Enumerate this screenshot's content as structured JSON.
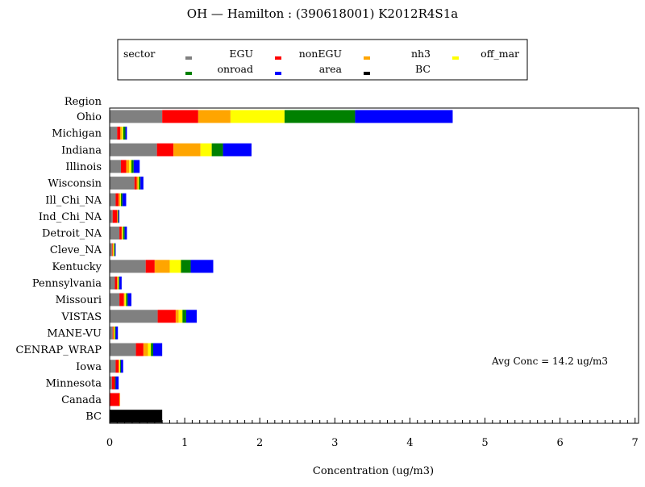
{
  "chart_data": {
    "type": "bar",
    "orientation": "horizontal",
    "stacked": true,
    "title": "OH — Hamilton : (390618001) K2012R4S1a",
    "xlabel": "Concentration (ug/m3)",
    "ylabel": "Region",
    "xlim": [
      0,
      7
    ],
    "xticks": [
      "0",
      "1",
      "2",
      "3",
      "4",
      "5",
      "6",
      "7"
    ],
    "grid": false,
    "legend_title": "sector",
    "legend_placement": "top",
    "annotation": "Avg Conc = 14.2 ug/m3",
    "categories": [
      "Ohio",
      "Michigan",
      "Indiana",
      "Illinois",
      "Wisconsin",
      "Ill_Chi_NA",
      "Ind_Chi_NA",
      "Detroit_NA",
      "Cleve_NA",
      "Kentucky",
      "Pennsylvania",
      "Missouri",
      "VISTAS",
      "MANE-VU",
      "CENRAP_WRAP",
      "Iowa",
      "Minnesota",
      "Canada",
      "BC"
    ],
    "series": [
      {
        "name": "EGU",
        "color": "#808080",
        "values": [
          0.7,
          0.1,
          0.63,
          0.15,
          0.33,
          0.08,
          0.04,
          0.13,
          0.03,
          0.48,
          0.07,
          0.13,
          0.64,
          0.04,
          0.35,
          0.08,
          0.03,
          0.0,
          0
        ]
      },
      {
        "name": "nonEGU",
        "color": "#ff0000",
        "values": [
          0.48,
          0.04,
          0.22,
          0.07,
          0.03,
          0.04,
          0.06,
          0.03,
          0.01,
          0.12,
          0.03,
          0.06,
          0.24,
          0.01,
          0.1,
          0.04,
          0.04,
          0.13,
          0
        ]
      },
      {
        "name": "nh3",
        "color": "#ffa500",
        "values": [
          0.43,
          0.02,
          0.36,
          0.04,
          0.02,
          0.02,
          0.01,
          0.01,
          0.01,
          0.2,
          0.01,
          0.01,
          0.04,
          0.01,
          0.06,
          0.01,
          0.0,
          0.01,
          0
        ]
      },
      {
        "name": "off_mar",
        "color": "#ffff00",
        "values": [
          0.72,
          0.02,
          0.15,
          0.03,
          0.01,
          0.01,
          0.0,
          0.01,
          0.01,
          0.15,
          0.01,
          0.02,
          0.05,
          0.01,
          0.04,
          0.01,
          0.0,
          0.0,
          0
        ]
      },
      {
        "name": "onroad",
        "color": "#008000",
        "values": [
          0.94,
          0.03,
          0.15,
          0.03,
          0.02,
          0.02,
          0.01,
          0.02,
          0.01,
          0.13,
          0.01,
          0.02,
          0.05,
          0.01,
          0.03,
          0.01,
          0.01,
          0.0,
          0
        ]
      },
      {
        "name": "area",
        "color": "#0000ff",
        "values": [
          1.3,
          0.02,
          0.38,
          0.08,
          0.04,
          0.05,
          0.01,
          0.03,
          0.01,
          0.3,
          0.03,
          0.05,
          0.14,
          0.03,
          0.12,
          0.03,
          0.04,
          0.0,
          0
        ]
      },
      {
        "name": "BC",
        "color": "#000000",
        "values": [
          0,
          0,
          0,
          0,
          0,
          0,
          0,
          0,
          0,
          0,
          0,
          0,
          0,
          0,
          0,
          0,
          0,
          0,
          0.7
        ]
      }
    ]
  }
}
